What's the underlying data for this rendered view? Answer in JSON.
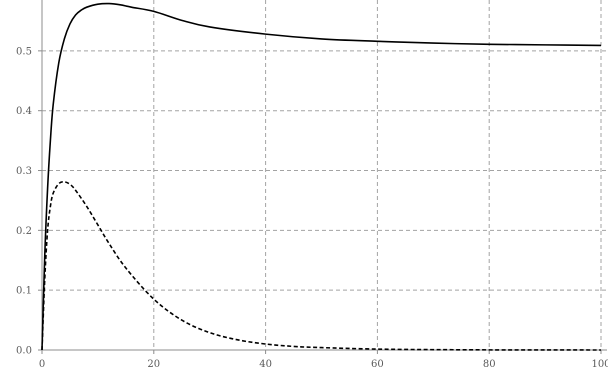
{
  "chart_data": {
    "type": "line",
    "title": "",
    "xlabel": "",
    "ylabel": "",
    "xlim": [
      0,
      100
    ],
    "ylim": [
      0,
      0.58
    ],
    "grid": true,
    "x_ticks": [
      {
        "value": 0,
        "label": "0"
      },
      {
        "value": 20,
        "label": "20"
      },
      {
        "value": 40,
        "label": "40"
      },
      {
        "value": 60,
        "label": "60"
      },
      {
        "value": 80,
        "label": "80"
      },
      {
        "value": 100,
        "label": "100"
      }
    ],
    "y_ticks": [
      {
        "value": 0,
        "label": "0.0"
      },
      {
        "value": 0.1,
        "label": "0.1"
      },
      {
        "value": 0.2,
        "label": "0.2"
      },
      {
        "value": 0.3,
        "label": "0.3"
      },
      {
        "value": 0.4,
        "label": "0.4"
      },
      {
        "value": 0.5,
        "label": "0.5"
      }
    ],
    "series": [
      {
        "style": "solid",
        "color": "#000000",
        "x": [
          0,
          0.5,
          1,
          1.5,
          2,
          3,
          4,
          5,
          6,
          7,
          8,
          10,
          12,
          14,
          16,
          20,
          25,
          30,
          40,
          50,
          60,
          70,
          80,
          90,
          100
        ],
        "y": [
          0,
          0.16,
          0.27,
          0.35,
          0.41,
          0.48,
          0.52,
          0.545,
          0.56,
          0.568,
          0.573,
          0.578,
          0.579,
          0.577,
          0.573,
          0.566,
          0.551,
          0.54,
          0.528,
          0.52,
          0.516,
          0.513,
          0.511,
          0.51,
          0.509
        ]
      },
      {
        "style": "dashed",
        "color": "#000000",
        "x": [
          0,
          0.5,
          1,
          1.5,
          2,
          3,
          4,
          5,
          6,
          8,
          10,
          12,
          15,
          20,
          25,
          30,
          35,
          40,
          45,
          50,
          60,
          70,
          80,
          90,
          100
        ],
        "y": [
          0,
          0.12,
          0.2,
          0.24,
          0.262,
          0.278,
          0.281,
          0.277,
          0.267,
          0.24,
          0.209,
          0.178,
          0.137,
          0.085,
          0.05,
          0.029,
          0.017,
          0.01,
          0.006,
          0.004,
          0.0015,
          0.0006,
          0.0002,
          0.0001,
          0
        ]
      }
    ]
  }
}
